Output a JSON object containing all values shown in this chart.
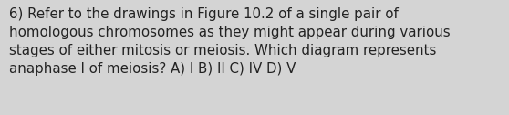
{
  "text": "6) Refer to the drawings in Figure 10.2 of a single pair of\nhomologous chromosomes as they might appear during various\nstages of either mitosis or meiosis. Which diagram represents\nanaphase I of meiosis? A) I B) II C) IV D) V",
  "bg_color": "#d4d4d4",
  "text_color": "#222222",
  "font_size": 10.8,
  "fig_width": 5.58,
  "fig_height": 1.26,
  "dpi": 100
}
